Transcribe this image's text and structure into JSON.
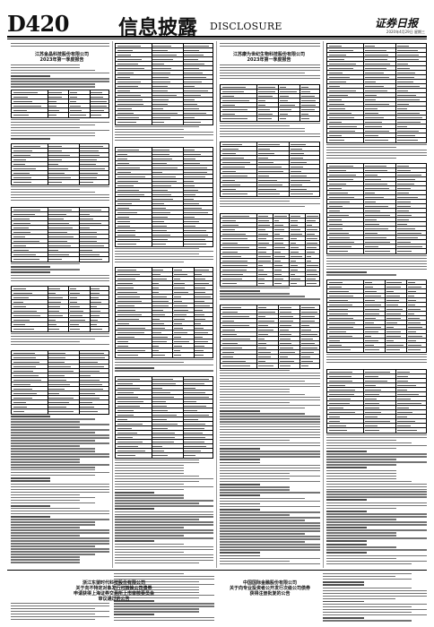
{
  "masthead": {
    "page_number": "D420",
    "section_cn": "信息披露",
    "section_en": "DISCLOSURE",
    "paper_logo": "证券日报",
    "info_line": "2020年4月29日 星期三"
  },
  "announcements": {
    "left_top": {
      "title_line1": "江苏金晶科技股份有限公司",
      "title_line2": "2023年第一季度报告"
    },
    "right_top": {
      "title_line1": "江苏康为世纪生物科技股份有限公司",
      "title_line2": "2023年第一季度报告"
    },
    "left_bottom": {
      "title_line1": "浙江东望时代科技股份有限公司",
      "title_line2": "关于向不特定对象发行可转换公司债券",
      "title_line3": "申请获得上海证券交易所上市审核委员会",
      "title_line4": "审议通过的公告"
    },
    "right_bottom": {
      "title_line1": "中国国际金融股份有限公司",
      "title_line2": "关于向专业投资者公开发行次级公司债券",
      "title_line3": "获得注册批复的公告"
    }
  }
}
